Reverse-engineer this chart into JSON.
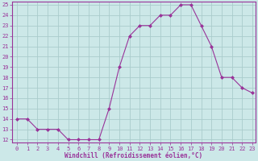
{
  "x": [
    0,
    1,
    2,
    3,
    4,
    5,
    6,
    7,
    8,
    9,
    10,
    11,
    12,
    13,
    14,
    15,
    16,
    17,
    18,
    19,
    20,
    21,
    22,
    23
  ],
  "y": [
    14,
    14,
    13,
    13,
    13,
    12,
    12,
    12,
    12,
    15,
    19,
    22,
    23,
    23,
    24,
    24,
    25,
    25,
    23,
    21,
    18,
    18,
    17,
    16.5
  ],
  "line_color": "#993399",
  "marker": "D",
  "marker_size": 2.0,
  "bg_color": "#cce8e8",
  "grid_color": "#aacccc",
  "xlabel": "Windchill (Refroidissement éolien,°C)",
  "xlabel_color": "#993399",
  "tick_color": "#993399",
  "spine_color": "#993399",
  "ylim_min": 12,
  "ylim_max": 25,
  "xlim_min": 0,
  "xlim_max": 23,
  "yticks": [
    12,
    13,
    14,
    15,
    16,
    17,
    18,
    19,
    20,
    21,
    22,
    23,
    24,
    25
  ],
  "xticks": [
    0,
    1,
    2,
    3,
    4,
    5,
    6,
    7,
    8,
    9,
    10,
    11,
    12,
    13,
    14,
    15,
    16,
    17,
    18,
    19,
    20,
    21,
    22,
    23
  ],
  "tick_fontsize": 5.0,
  "xlabel_fontsize": 5.5,
  "linewidth": 0.8
}
